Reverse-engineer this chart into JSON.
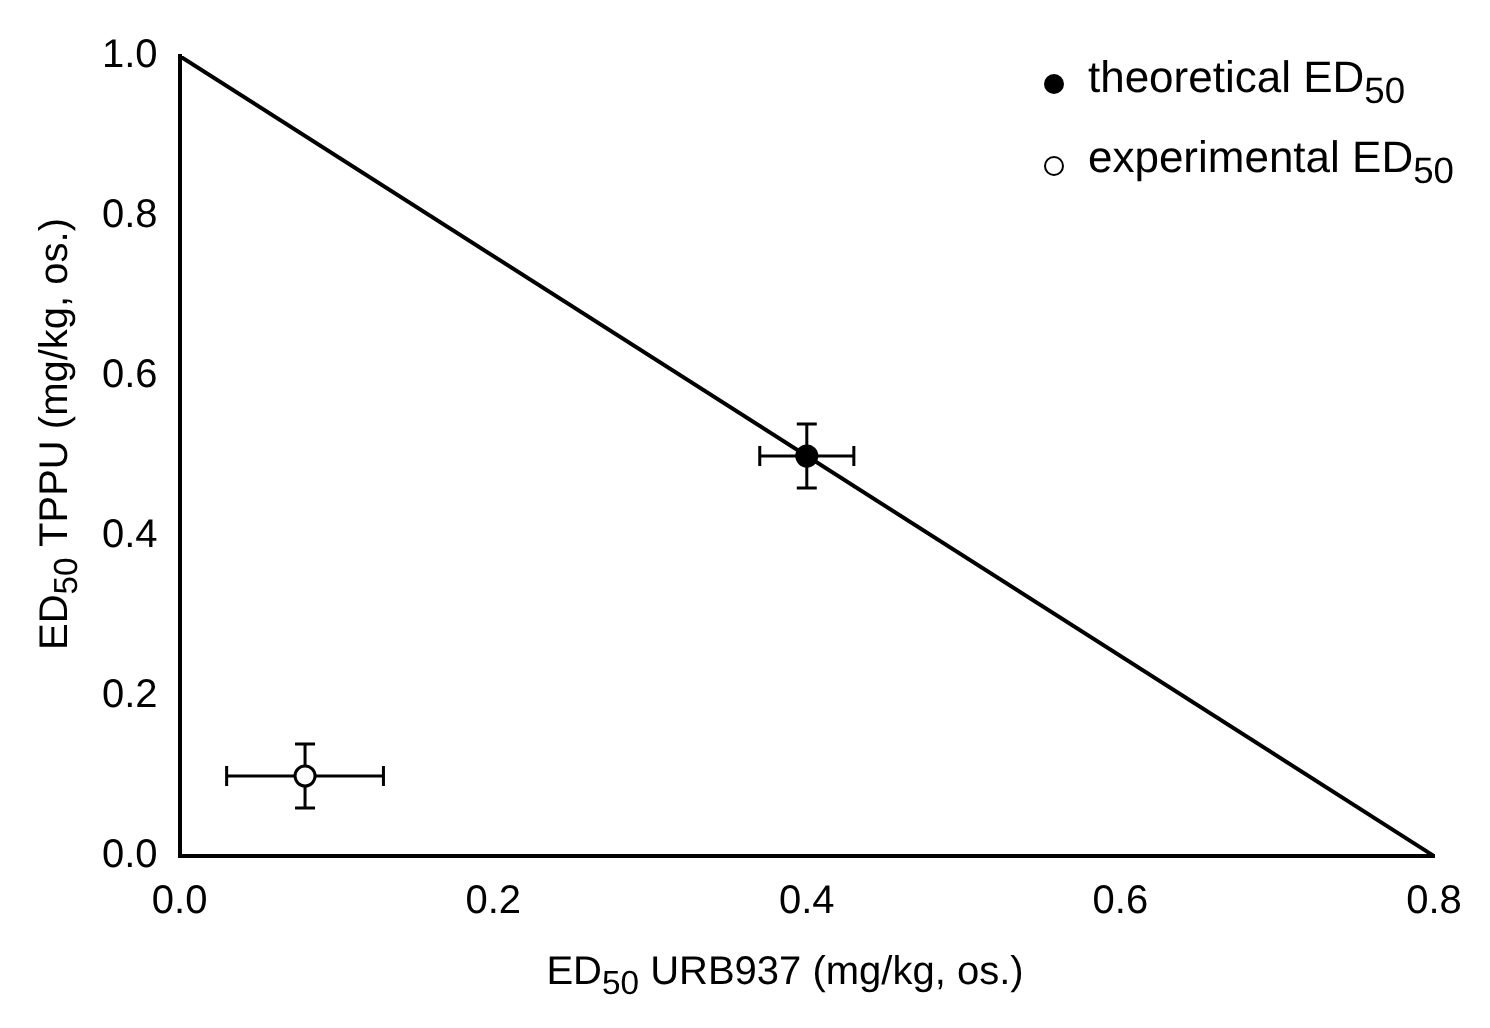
{
  "chart_data": {
    "type": "scatter",
    "xlabel": "ED$_{50}$ URB937 (mg/kg, os.)",
    "ylabel": "ED$_{50}$ TPPU (mg/kg, os.)",
    "xlim": [
      0,
      0.8
    ],
    "ylim": [
      0,
      1.0
    ],
    "xticks": [
      {
        "value": 0,
        "label": "0.0"
      },
      {
        "value": 0.2,
        "label": "0.2"
      },
      {
        "value": 0.4,
        "label": "0.4"
      },
      {
        "value": 0.6,
        "label": "0.6"
      },
      {
        "value": 0.8,
        "label": "0.8"
      }
    ],
    "yticks": [
      {
        "value": 0,
        "label": "0.0"
      },
      {
        "value": 0.2,
        "label": "0.2"
      },
      {
        "value": 0.4,
        "label": "0.4"
      },
      {
        "value": 0.6,
        "label": "0.6"
      },
      {
        "value": 0.8,
        "label": "0.8"
      },
      {
        "value": 1.0,
        "label": "1.0"
      }
    ],
    "grid": false,
    "legend": "top right",
    "marker": "circle",
    "series": [
      {
        "type": "line",
        "marker": "none",
        "color": "#000000",
        "x": [
          0,
          0.8
        ],
        "values": [
          1.0,
          0
        ]
      },
      {
        "name": "theoretical ED$_{50}$",
        "color": "#000000",
        "x": [
          0.4
        ],
        "values": [
          0.5
        ],
        "errors": [
          0.04
        ],
        "xerrors": [
          0.03
        ]
      },
      {
        "name": "experimental ED$_{50}$",
        "color": "#000000",
        "x": [
          0.08
        ],
        "values": [
          0.1
        ],
        "errors": [
          0.04
        ],
        "xerrors": [
          0.05
        ]
      }
    ]
  }
}
